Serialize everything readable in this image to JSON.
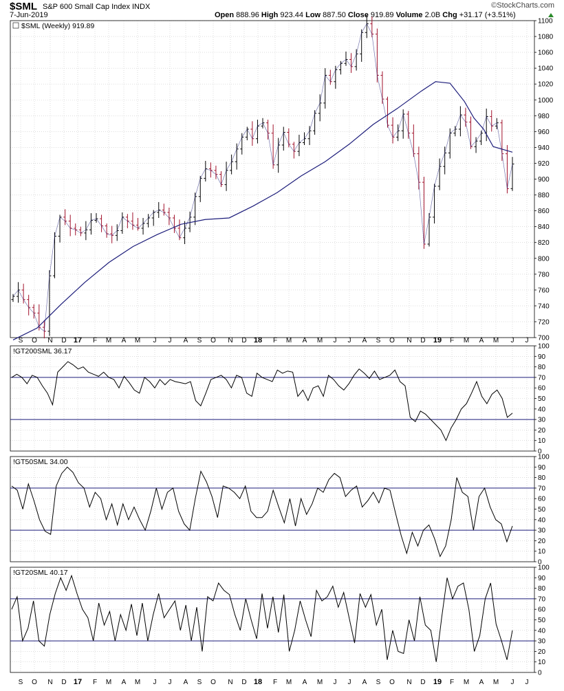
{
  "header": {
    "symbol": "$SML",
    "name": "S&P 600 Small Cap Index",
    "exchange": "INDX",
    "date": "7-Jun-2019",
    "open_label": "Open",
    "open": "888.96",
    "high_label": "High",
    "high": "923.44",
    "low_label": "Low",
    "low": "887.50",
    "close_label": "Close",
    "close": "919.89",
    "volume_label": "Volume",
    "volume": "2.0B",
    "chg_label": "Chg",
    "chg": "+31.17 (+3.51%)",
    "brand": "©StockCharts.com"
  },
  "colors": {
    "up": "#000000",
    "down": "#a0102a",
    "ma": "#1c1c7a",
    "refline": "#1c1c7a",
    "grid": "#c8c8c8",
    "indicator": "#000000"
  },
  "chart_data": [
    {
      "type": "bar",
      "subtype": "ohlc",
      "panel_label": "$SML (Weekly) 919.89",
      "ylim": [
        700,
        1100
      ],
      "yticks": [
        700,
        720,
        740,
        760,
        780,
        800,
        820,
        840,
        860,
        880,
        900,
        920,
        940,
        960,
        980,
        1000,
        1020,
        1040,
        1060,
        1080,
        1100
      ],
      "x_axis_labels": [
        "S",
        "O",
        "N",
        "D",
        "17",
        "F",
        "M",
        "A",
        "M",
        "J",
        "J",
        "A",
        "S",
        "O",
        "N",
        "D",
        "18",
        "F",
        "M",
        "A",
        "M",
        "J",
        "J",
        "A",
        "S",
        "O",
        "N",
        "D",
        "19",
        "F",
        "M",
        "A",
        "M",
        "J",
        "J"
      ],
      "closes": [
        752,
        760,
        748,
        738,
        731,
        713,
        708,
        778,
        828,
        852,
        847,
        838,
        836,
        832,
        836,
        848,
        850,
        841,
        831,
        829,
        835,
        852,
        847,
        842,
        838,
        844,
        851,
        858,
        861,
        858,
        851,
        838,
        826,
        838,
        852,
        878,
        901,
        913,
        911,
        906,
        893,
        911,
        922,
        938,
        953,
        963,
        951,
        967,
        971,
        958,
        918,
        943,
        959,
        944,
        935,
        946,
        951,
        961,
        983,
        996,
        1031,
        1023,
        1038,
        1046,
        1051,
        1042,
        1058,
        1085,
        1096,
        1083,
        1031,
        1001,
        968,
        953,
        961,
        982,
        958,
        932,
        896,
        818,
        852,
        891,
        916,
        933,
        958,
        963,
        981,
        972,
        941,
        948,
        958,
        979,
        967,
        971,
        932,
        888,
        919
      ],
      "moving_average": [
        {
          "index": 0,
          "value": 697
        },
        {
          "index": 5,
          "value": 712
        },
        {
          "index": 10,
          "value": 742
        },
        {
          "index": 15,
          "value": 770
        },
        {
          "index": 20,
          "value": 795
        },
        {
          "index": 25,
          "value": 815
        },
        {
          "index": 30,
          "value": 830
        },
        {
          "index": 35,
          "value": 843
        },
        {
          "index": 40,
          "value": 849
        },
        {
          "index": 45,
          "value": 851
        },
        {
          "index": 50,
          "value": 866
        },
        {
          "index": 55,
          "value": 883
        },
        {
          "index": 60,
          "value": 904
        },
        {
          "index": 65,
          "value": 922
        },
        {
          "index": 70,
          "value": 944
        },
        {
          "index": 75,
          "value": 969
        },
        {
          "index": 80,
          "value": 989
        },
        {
          "index": 85,
          "value": 1011
        },
        {
          "index": 88,
          "value": 1023
        },
        {
          "index": 91,
          "value": 1021
        },
        {
          "index": 94,
          "value": 998
        },
        {
          "index": 96,
          "value": 977
        },
        {
          "index": 98,
          "value": 963
        },
        {
          "index": 100,
          "value": 941
        },
        {
          "index": 104,
          "value": 934
        }
      ]
    },
    {
      "type": "line",
      "panel_label": "!GT200SML 36.17",
      "ylim": [
        0,
        100
      ],
      "yticks": [
        0,
        10,
        20,
        30,
        40,
        50,
        60,
        70,
        80,
        90,
        100
      ],
      "reference_lines": [
        70,
        30
      ],
      "values": [
        70,
        73,
        70,
        64,
        72,
        70,
        62,
        55,
        44,
        75,
        80,
        85,
        82,
        78,
        80,
        75,
        73,
        71,
        75,
        70,
        68,
        60,
        71,
        65,
        58,
        55,
        70,
        66,
        60,
        68,
        63,
        68,
        66,
        65,
        64,
        66,
        48,
        43,
        55,
        68,
        70,
        72,
        68,
        60,
        72,
        70,
        55,
        52,
        74,
        70,
        68,
        66,
        77,
        74,
        76,
        75,
        52,
        58,
        48,
        60,
        62,
        52,
        72,
        68,
        62,
        58,
        64,
        72,
        78,
        74,
        69,
        76,
        68,
        70,
        72,
        77,
        66,
        62,
        32,
        28,
        38,
        35,
        30,
        25,
        20,
        10,
        22,
        30,
        40,
        45,
        55,
        66,
        52,
        45,
        54,
        58,
        50,
        32,
        36
      ]
    },
    {
      "type": "line",
      "panel_label": "!GT50SML 34.00",
      "ylim": [
        0,
        100
      ],
      "yticks": [
        0,
        10,
        20,
        30,
        40,
        50,
        60,
        70,
        80,
        90,
        100
      ],
      "reference_lines": [
        70,
        30
      ],
      "values": [
        72,
        68,
        50,
        74,
        58,
        40,
        29,
        26,
        72,
        84,
        90,
        85,
        75,
        70,
        52,
        66,
        60,
        40,
        55,
        35,
        55,
        40,
        52,
        40,
        30,
        48,
        70,
        50,
        66,
        70,
        48,
        36,
        30,
        60,
        86,
        76,
        62,
        42,
        72,
        70,
        66,
        60,
        72,
        48,
        42,
        42,
        48,
        68,
        52,
        37,
        60,
        34,
        60,
        45,
        55,
        70,
        66,
        78,
        84,
        80,
        62,
        68,
        72,
        52,
        58,
        66,
        56,
        70,
        68,
        46,
        25,
        8,
        28,
        15,
        30,
        35,
        22,
        5,
        15,
        40,
        80,
        66,
        62,
        30,
        62,
        70,
        52,
        40,
        36,
        19,
        34
      ]
    },
    {
      "type": "line",
      "panel_label": "!GT20SML 40.17",
      "ylim": [
        0,
        100
      ],
      "yticks": [
        0,
        10,
        20,
        30,
        40,
        50,
        60,
        70,
        80,
        90,
        100
      ],
      "reference_lines": [
        70,
        30
      ],
      "values": [
        60,
        72,
        30,
        42,
        68,
        30,
        25,
        55,
        75,
        90,
        78,
        92,
        75,
        60,
        52,
        30,
        66,
        45,
        58,
        30,
        55,
        40,
        65,
        35,
        66,
        30,
        55,
        75,
        52,
        60,
        68,
        40,
        64,
        30,
        62,
        20,
        72,
        68,
        85,
        78,
        74,
        55,
        40,
        70,
        50,
        32,
        75,
        42,
        72,
        38,
        74,
        20,
        40,
        68,
        50,
        34,
        78,
        68,
        72,
        82,
        62,
        76,
        52,
        28,
        75,
        62,
        74,
        45,
        60,
        12,
        40,
        20,
        18,
        50,
        30,
        72,
        45,
        40,
        10,
        52,
        90,
        70,
        82,
        85,
        60,
        20,
        35,
        70,
        85,
        46,
        30,
        12,
        40
      ]
    }
  ]
}
